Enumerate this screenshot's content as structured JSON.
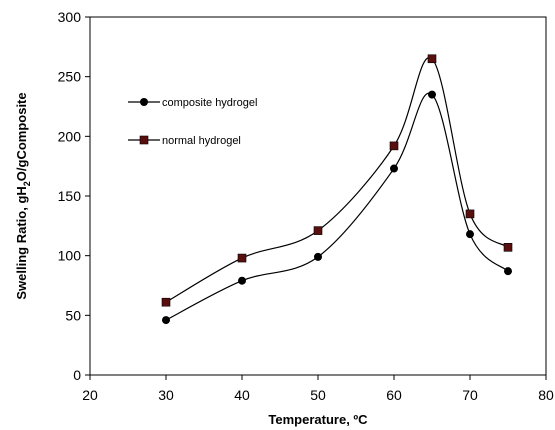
{
  "chart_data": {
    "type": "line",
    "title": "",
    "xlabel": "Temperature, ºC",
    "ylabel_parts": [
      "Swelling Ratio, gH",
      "2",
      "O/gComposite"
    ],
    "xlim": [
      20,
      80
    ],
    "ylim": [
      0,
      300
    ],
    "xticks": [
      20,
      30,
      40,
      50,
      60,
      70,
      80
    ],
    "yticks": [
      0,
      50,
      100,
      150,
      200,
      250,
      300
    ],
    "grid": false,
    "legend_position": "upper-left inside",
    "series": [
      {
        "name": "composite hydrogel",
        "marker": "circle",
        "color": "#000000",
        "x": [
          30,
          40,
          50,
          60,
          65,
          70,
          75
        ],
        "y": [
          46,
          79,
          99,
          173,
          235,
          118,
          87
        ]
      },
      {
        "name": "normal hydrogel",
        "marker": "square",
        "color": "#000000",
        "marker_fill": "#5a0f0f",
        "x": [
          30,
          40,
          50,
          60,
          65,
          70,
          75
        ],
        "y": [
          61,
          98,
          121,
          192,
          265,
          135,
          107
        ]
      }
    ]
  }
}
